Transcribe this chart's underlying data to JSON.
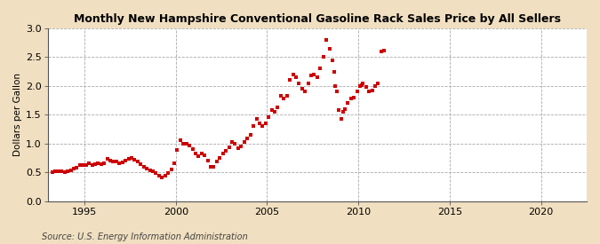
{
  "title": "Monthly New Hampshire Conventional Gasoline Rack Sales Price by All Sellers",
  "ylabel": "Dollars per Gallon",
  "source": "Source: U.S. Energy Information Administration",
  "figure_bg": "#f0dfc0",
  "plot_bg": "#ffffff",
  "dot_color": "#cc0000",
  "xlim": [
    1993.0,
    2022.5
  ],
  "ylim": [
    0.0,
    3.0
  ],
  "xticks": [
    1995,
    2000,
    2005,
    2010,
    2015,
    2020
  ],
  "yticks": [
    0.0,
    0.5,
    1.0,
    1.5,
    2.0,
    2.5,
    3.0
  ],
  "data": [
    [
      1993.25,
      0.5
    ],
    [
      1993.42,
      0.51
    ],
    [
      1993.58,
      0.52
    ],
    [
      1993.75,
      0.51
    ],
    [
      1993.92,
      0.5
    ],
    [
      1994.08,
      0.51
    ],
    [
      1994.25,
      0.54
    ],
    [
      1994.42,
      0.56
    ],
    [
      1994.58,
      0.58
    ],
    [
      1994.75,
      0.62
    ],
    [
      1994.92,
      0.63
    ],
    [
      1995.08,
      0.63
    ],
    [
      1995.25,
      0.65
    ],
    [
      1995.42,
      0.63
    ],
    [
      1995.58,
      0.64
    ],
    [
      1995.75,
      0.65
    ],
    [
      1995.92,
      0.64
    ],
    [
      1996.08,
      0.65
    ],
    [
      1996.25,
      0.73
    ],
    [
      1996.42,
      0.7
    ],
    [
      1996.58,
      0.68
    ],
    [
      1996.75,
      0.68
    ],
    [
      1996.92,
      0.66
    ],
    [
      1997.08,
      0.67
    ],
    [
      1997.25,
      0.7
    ],
    [
      1997.42,
      0.73
    ],
    [
      1997.58,
      0.75
    ],
    [
      1997.75,
      0.72
    ],
    [
      1997.92,
      0.68
    ],
    [
      1998.08,
      0.64
    ],
    [
      1998.25,
      0.6
    ],
    [
      1998.42,
      0.56
    ],
    [
      1998.58,
      0.53
    ],
    [
      1998.75,
      0.51
    ],
    [
      1998.92,
      0.48
    ],
    [
      1999.08,
      0.44
    ],
    [
      1999.25,
      0.41
    ],
    [
      1999.42,
      0.44
    ],
    [
      1999.58,
      0.49
    ],
    [
      1999.75,
      0.55
    ],
    [
      1999.92,
      0.65
    ],
    [
      2000.08,
      0.88
    ],
    [
      2000.25,
      1.05
    ],
    [
      2000.42,
      1.0
    ],
    [
      2000.58,
      1.0
    ],
    [
      2000.75,
      0.97
    ],
    [
      2000.92,
      0.9
    ],
    [
      2001.08,
      0.82
    ],
    [
      2001.25,
      0.78
    ],
    [
      2001.42,
      0.82
    ],
    [
      2001.58,
      0.8
    ],
    [
      2001.75,
      0.7
    ],
    [
      2001.92,
      0.6
    ],
    [
      2002.08,
      0.6
    ],
    [
      2002.25,
      0.68
    ],
    [
      2002.42,
      0.75
    ],
    [
      2002.58,
      0.82
    ],
    [
      2002.75,
      0.87
    ],
    [
      2002.92,
      0.93
    ],
    [
      2003.08,
      1.02
    ],
    [
      2003.25,
      1.0
    ],
    [
      2003.42,
      0.92
    ],
    [
      2003.58,
      0.95
    ],
    [
      2003.75,
      1.02
    ],
    [
      2003.92,
      1.08
    ],
    [
      2004.08,
      1.15
    ],
    [
      2004.25,
      1.3
    ],
    [
      2004.42,
      1.42
    ],
    [
      2004.58,
      1.35
    ],
    [
      2004.75,
      1.3
    ],
    [
      2004.92,
      1.35
    ],
    [
      2005.08,
      1.45
    ],
    [
      2005.25,
      1.58
    ],
    [
      2005.42,
      1.55
    ],
    [
      2005.58,
      1.62
    ],
    [
      2005.75,
      1.82
    ],
    [
      2005.92,
      1.78
    ],
    [
      2006.08,
      1.82
    ],
    [
      2006.25,
      2.1
    ],
    [
      2006.42,
      2.2
    ],
    [
      2006.58,
      2.15
    ],
    [
      2006.75,
      2.05
    ],
    [
      2006.92,
      1.95
    ],
    [
      2007.08,
      1.9
    ],
    [
      2007.25,
      2.05
    ],
    [
      2007.42,
      2.18
    ],
    [
      2007.58,
      2.2
    ],
    [
      2007.75,
      2.15
    ],
    [
      2007.92,
      2.3
    ],
    [
      2008.08,
      2.5
    ],
    [
      2008.25,
      2.8
    ],
    [
      2008.42,
      2.65
    ],
    [
      2008.58,
      2.45
    ],
    [
      2008.67,
      2.25
    ],
    [
      2008.75,
      2.0
    ],
    [
      2008.83,
      1.9
    ],
    [
      2008.92,
      1.58
    ],
    [
      2009.08,
      1.42
    ],
    [
      2009.17,
      1.55
    ],
    [
      2009.25,
      1.6
    ],
    [
      2009.42,
      1.7
    ],
    [
      2009.58,
      1.78
    ],
    [
      2009.75,
      1.8
    ],
    [
      2009.92,
      1.9
    ],
    [
      2010.08,
      2.0
    ],
    [
      2010.17,
      2.02
    ],
    [
      2010.25,
      2.05
    ],
    [
      2010.42,
      1.98
    ],
    [
      2010.58,
      1.9
    ],
    [
      2010.75,
      1.92
    ],
    [
      2010.92,
      2.0
    ],
    [
      2011.08,
      2.05
    ],
    [
      2011.25,
      2.6
    ],
    [
      2011.42,
      2.62
    ]
  ]
}
